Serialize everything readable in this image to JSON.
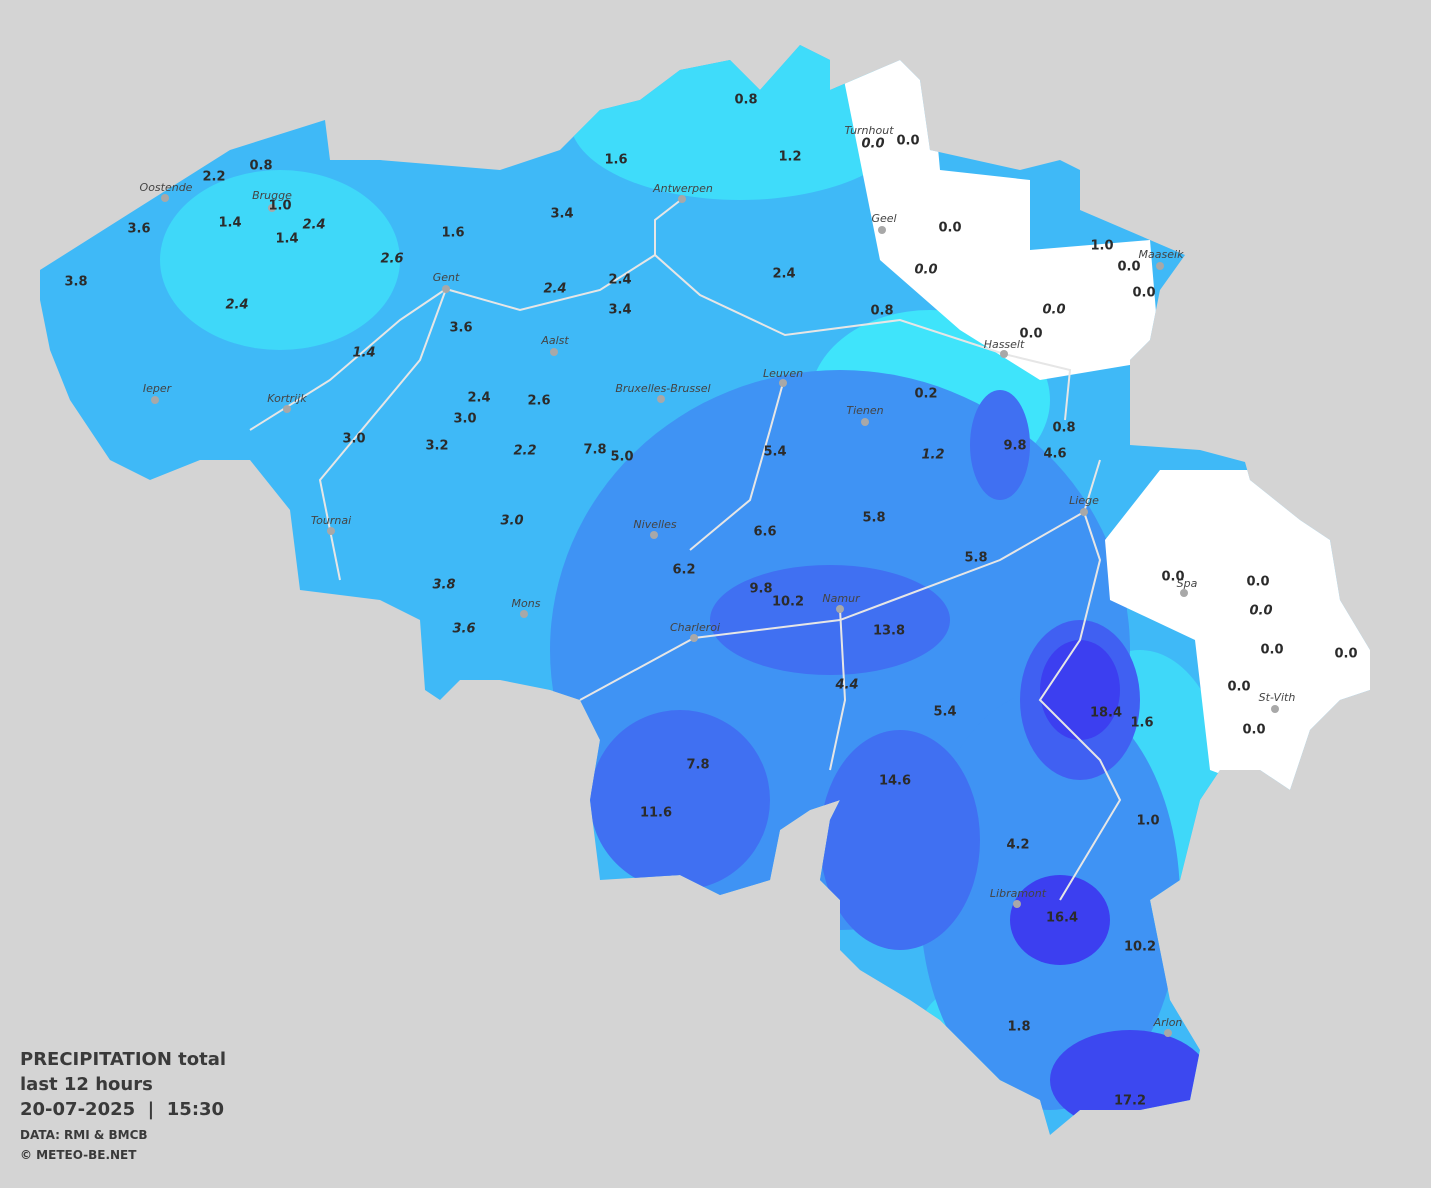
{
  "legend": {
    "title": "PRECIPITATION total",
    "subtitle": "last 12 hours",
    "datetime": "20-07-2025  |  15:30",
    "source": "DATA: RMI & BMCB",
    "copyright": "© METEO-BE.NET"
  },
  "cities": [
    "Oostende",
    "Brugge",
    "Antwerpen",
    "Turnhout",
    "Geel",
    "Maaseik",
    "Gent",
    "Aalst",
    "Hasselt",
    "Ieper",
    "Kortrijk",
    "Leuven",
    "Bruxelles-Brussel",
    "Tienen",
    "Liege",
    "Tournai",
    "Nivelles",
    "Spa",
    "Mons",
    "Namur",
    "Charleroi",
    "St-Vith",
    "Libramont",
    "Arlon"
  ],
  "values": [
    "0.8",
    "1.6",
    "1.2",
    "0.8",
    "2.2",
    "1.0",
    "1.4",
    "1.4",
    "2.4",
    "3.4",
    "3.6",
    "1.6",
    "2.6",
    "3.8",
    "2.4",
    "2.4",
    "2.4",
    "2.4",
    "3.4",
    "3.6",
    "1.4",
    "0.8",
    "0.0",
    "0.0",
    "0.0",
    "0.0",
    "1.0",
    "0.0",
    "0.0",
    "0.0",
    "0.0",
    "0.2",
    "2.4",
    "2.6",
    "3.0",
    "9.8",
    "0.8",
    "4.6",
    "3.0",
    "3.2",
    "2.2",
    "7.8",
    "5.0",
    "5.4",
    "1.2",
    "3.0",
    "5.8",
    "6.6",
    "5.8",
    "6.2",
    "3.8",
    "9.8",
    "10.2",
    "0.0",
    "0.0",
    "0.0",
    "3.6",
    "13.8",
    "0.0",
    "0.0",
    "4.4",
    "0.0",
    "5.4",
    "18.4",
    "1.6",
    "0.0",
    "7.8",
    "14.6",
    "11.6",
    "1.0",
    "4.2",
    "16.4",
    "10.2",
    "1.8",
    "17.2"
  ]
}
